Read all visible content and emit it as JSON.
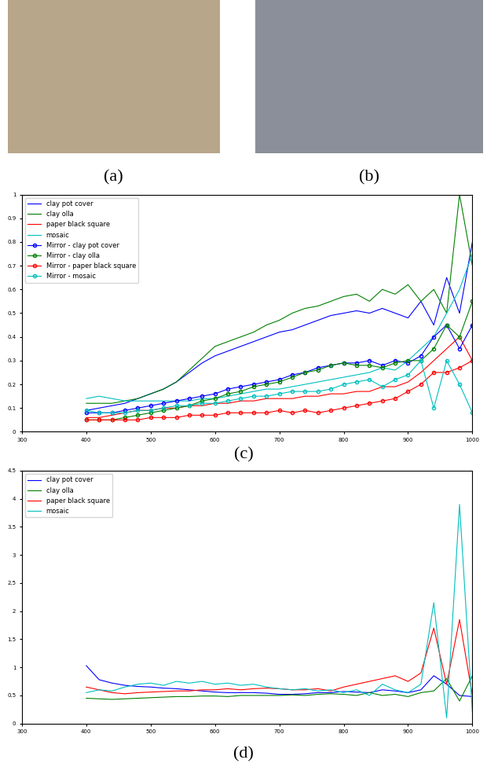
{
  "images": [
    {
      "caption": "(a)"
    },
    {
      "caption": "(b)"
    }
  ],
  "chart_data": [
    {
      "type": "line",
      "annotations": [
        "(c)"
      ],
      "legend": "upper left",
      "grid": false,
      "x": [
        400,
        420,
        440,
        460,
        480,
        500,
        520,
        540,
        560,
        580,
        600,
        620,
        640,
        660,
        680,
        700,
        720,
        740,
        760,
        780,
        800,
        820,
        840,
        860,
        880,
        900,
        920,
        940,
        960,
        980,
        1000
      ],
      "xlim": [
        300,
        1000
      ],
      "xticks": [
        300,
        400,
        500,
        600,
        700,
        800,
        900,
        1000
      ],
      "ylim": [
        0,
        1
      ],
      "yticks": [
        0,
        0.1,
        0.2,
        0.3,
        0.4,
        0.5,
        0.6,
        0.7,
        0.8,
        0.9,
        1
      ],
      "series": [
        {
          "name": "clay pot cover",
          "color": "#0000ff",
          "line_style": "solid",
          "marker": "none",
          "values": [
            0.09,
            0.1,
            0.11,
            0.12,
            0.14,
            0.16,
            0.18,
            0.21,
            0.25,
            0.29,
            0.32,
            0.34,
            0.36,
            0.38,
            0.4,
            0.42,
            0.43,
            0.45,
            0.47,
            0.49,
            0.5,
            0.51,
            0.5,
            0.52,
            0.5,
            0.48,
            0.55,
            0.45,
            0.65,
            0.5,
            0.8
          ]
        },
        {
          "name": "clay olla",
          "color": "#008000",
          "line_style": "solid",
          "marker": "none",
          "values": [
            0.12,
            0.12,
            0.12,
            0.13,
            0.14,
            0.16,
            0.18,
            0.21,
            0.26,
            0.31,
            0.36,
            0.38,
            0.4,
            0.42,
            0.45,
            0.47,
            0.5,
            0.52,
            0.53,
            0.55,
            0.57,
            0.58,
            0.55,
            0.6,
            0.58,
            0.62,
            0.55,
            0.6,
            0.5,
            1.0,
            0.7
          ]
        },
        {
          "name": "paper black square",
          "color": "#ff0000",
          "line_style": "solid",
          "marker": "none",
          "values": [
            0.06,
            0.06,
            0.07,
            0.08,
            0.09,
            0.09,
            0.1,
            0.1,
            0.11,
            0.11,
            0.12,
            0.12,
            0.13,
            0.13,
            0.14,
            0.14,
            0.14,
            0.15,
            0.15,
            0.16,
            0.16,
            0.17,
            0.17,
            0.19,
            0.19,
            0.21,
            0.25,
            0.3,
            0.35,
            0.4,
            0.3
          ]
        },
        {
          "name": "mosaic",
          "color": "#00bfbf",
          "line_style": "solid",
          "marker": "none",
          "values": [
            0.14,
            0.15,
            0.14,
            0.13,
            0.13,
            0.13,
            0.13,
            0.13,
            0.13,
            0.14,
            0.14,
            0.15,
            0.16,
            0.17,
            0.18,
            0.18,
            0.19,
            0.2,
            0.21,
            0.22,
            0.23,
            0.24,
            0.25,
            0.27,
            0.26,
            0.3,
            0.35,
            0.4,
            0.5,
            0.6,
            0.75
          ]
        },
        {
          "name": "Mirror - clay pot cover",
          "color": "#0000ff",
          "line_style": "solid",
          "marker": "circle",
          "values": [
            0.08,
            0.08,
            0.08,
            0.09,
            0.1,
            0.11,
            0.12,
            0.13,
            0.14,
            0.15,
            0.16,
            0.18,
            0.19,
            0.2,
            0.21,
            0.22,
            0.24,
            0.25,
            0.27,
            0.28,
            0.29,
            0.29,
            0.3,
            0.28,
            0.3,
            0.29,
            0.32,
            0.4,
            0.45,
            0.35,
            0.45
          ]
        },
        {
          "name": "Mirror - clay olla",
          "color": "#008000",
          "line_style": "solid",
          "marker": "circle",
          "values": [
            0.05,
            0.05,
            0.05,
            0.06,
            0.07,
            0.08,
            0.09,
            0.1,
            0.11,
            0.13,
            0.14,
            0.16,
            0.17,
            0.19,
            0.2,
            0.21,
            0.23,
            0.25,
            0.26,
            0.28,
            0.29,
            0.28,
            0.28,
            0.27,
            0.29,
            0.3,
            0.3,
            0.35,
            0.45,
            0.4,
            0.55
          ]
        },
        {
          "name": "Mirror - paper black square",
          "color": "#ff0000",
          "line_style": "solid",
          "marker": "circle",
          "values": [
            0.05,
            0.05,
            0.05,
            0.05,
            0.05,
            0.06,
            0.06,
            0.06,
            0.07,
            0.07,
            0.07,
            0.08,
            0.08,
            0.08,
            0.08,
            0.09,
            0.08,
            0.09,
            0.08,
            0.09,
            0.1,
            0.11,
            0.12,
            0.13,
            0.14,
            0.17,
            0.2,
            0.25,
            0.25,
            0.27,
            0.3
          ]
        },
        {
          "name": "Mirror - mosaic",
          "color": "#00bfbf",
          "line_style": "solid",
          "marker": "circle",
          "values": [
            0.09,
            0.08,
            0.08,
            0.08,
            0.09,
            0.09,
            0.1,
            0.11,
            0.11,
            0.12,
            0.12,
            0.13,
            0.14,
            0.15,
            0.15,
            0.16,
            0.17,
            0.17,
            0.17,
            0.18,
            0.2,
            0.21,
            0.22,
            0.19,
            0.22,
            0.24,
            0.3,
            0.1,
            0.3,
            0.2,
            0.08
          ]
        }
      ]
    },
    {
      "type": "line",
      "annotations": [
        "(d)"
      ],
      "legend": "upper left",
      "grid": false,
      "x": [
        400,
        420,
        440,
        460,
        480,
        500,
        520,
        540,
        560,
        580,
        600,
        620,
        640,
        660,
        680,
        700,
        720,
        740,
        760,
        780,
        800,
        820,
        840,
        860,
        880,
        900,
        920,
        940,
        960,
        980,
        1000
      ],
      "xlim": [
        300,
        1000
      ],
      "xticks": [
        300,
        400,
        500,
        600,
        700,
        800,
        900,
        1000
      ],
      "ylim": [
        0,
        4.5
      ],
      "yticks": [
        0,
        0.5,
        1,
        1.5,
        2,
        2.5,
        3,
        3.5,
        4,
        4.5
      ],
      "series": [
        {
          "name": "clay pot cover",
          "color": "#0000ff",
          "line_style": "solid",
          "marker": "none",
          "values": [
            1.03,
            0.78,
            0.72,
            0.68,
            0.66,
            0.65,
            0.63,
            0.62,
            0.6,
            0.58,
            0.56,
            0.55,
            0.55,
            0.55,
            0.54,
            0.52,
            0.52,
            0.53,
            0.55,
            0.55,
            0.57,
            0.56,
            0.55,
            0.6,
            0.58,
            0.55,
            0.6,
            0.85,
            0.7,
            0.5,
            0.48
          ]
        },
        {
          "name": "clay olla",
          "color": "#008000",
          "line_style": "solid",
          "marker": "none",
          "values": [
            0.45,
            0.44,
            0.43,
            0.44,
            0.45,
            0.46,
            0.47,
            0.48,
            0.48,
            0.49,
            0.49,
            0.48,
            0.5,
            0.5,
            0.5,
            0.5,
            0.51,
            0.5,
            0.52,
            0.53,
            0.52,
            0.5,
            0.55,
            0.5,
            0.52,
            0.48,
            0.55,
            0.58,
            0.8,
            0.4,
            0.85
          ]
        },
        {
          "name": "paper black square",
          "color": "#ff0000",
          "line_style": "solid",
          "marker": "none",
          "values": [
            0.65,
            0.6,
            0.55,
            0.53,
            0.55,
            0.56,
            0.57,
            0.58,
            0.58,
            0.6,
            0.6,
            0.62,
            0.6,
            0.62,
            0.63,
            0.62,
            0.6,
            0.6,
            0.62,
            0.58,
            0.65,
            0.7,
            0.75,
            0.8,
            0.85,
            0.75,
            0.9,
            1.7,
            0.7,
            1.85,
            0.5
          ]
        },
        {
          "name": "mosaic",
          "color": "#00bfbf",
          "line_style": "solid",
          "marker": "none",
          "values": [
            0.55,
            0.6,
            0.58,
            0.65,
            0.7,
            0.72,
            0.68,
            0.75,
            0.72,
            0.75,
            0.7,
            0.72,
            0.68,
            0.7,
            0.65,
            0.62,
            0.6,
            0.62,
            0.58,
            0.6,
            0.55,
            0.6,
            0.5,
            0.7,
            0.6,
            0.55,
            0.7,
            2.15,
            0.1,
            3.9,
            0.2
          ]
        }
      ]
    }
  ]
}
